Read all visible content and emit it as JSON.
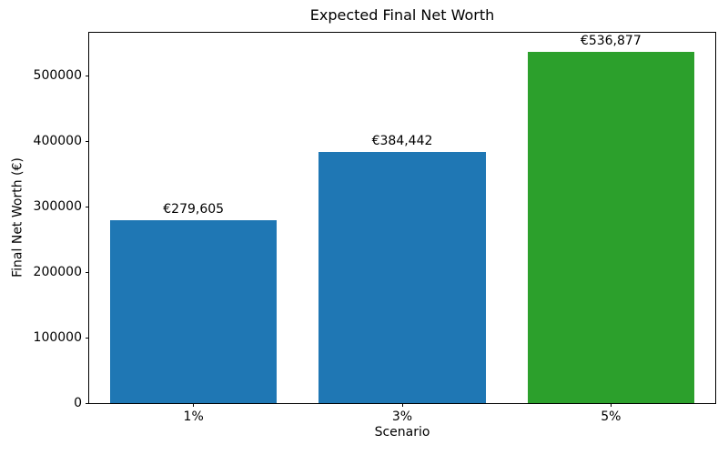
{
  "chart_data": {
    "type": "bar",
    "title": "Expected Final Net Worth",
    "xlabel": "Scenario",
    "ylabel": "Final Net Worth (€)",
    "categories": [
      "1%",
      "3%",
      "5%"
    ],
    "values": [
      279605,
      384442,
      536877
    ],
    "bar_value_labels": [
      "€279,605",
      "€384,442",
      "€536,877"
    ],
    "bar_colors": [
      "#1f77b4",
      "#1f77b4",
      "#2ca02c"
    ],
    "bar_width_fraction": 0.8,
    "ylim": [
      0,
      566000
    ],
    "yticks": [
      0,
      100000,
      200000,
      300000,
      400000,
      500000
    ],
    "ytick_labels": [
      "0",
      "100000",
      "200000",
      "300000",
      "400000",
      "500000"
    ],
    "grid": false,
    "legend_position": "none",
    "spine_color": "#000000",
    "text_color": "#000000",
    "background_color": "#ffffff"
  }
}
